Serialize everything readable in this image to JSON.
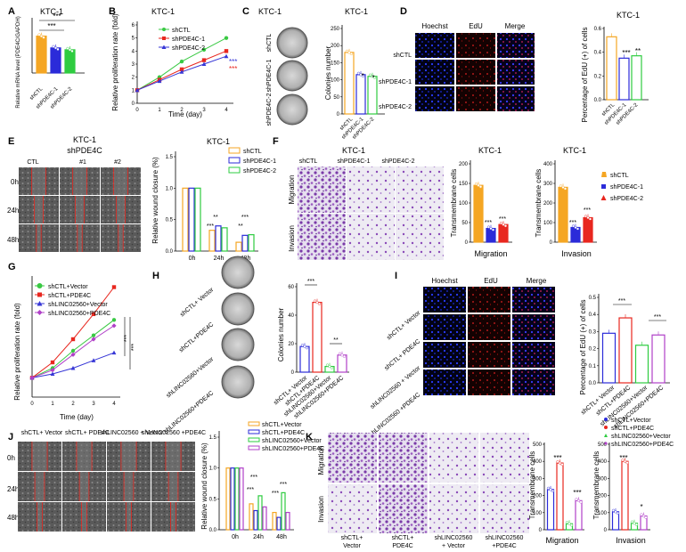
{
  "figure": {
    "panel_letters": [
      "A",
      "B",
      "C",
      "D",
      "E",
      "F",
      "G",
      "H",
      "I",
      "J",
      "K"
    ],
    "cell_line": "KTC-1",
    "sig3": "***",
    "sig2": "**",
    "sig1": "*"
  },
  "colors": {
    "orange": "#f5a623",
    "blue": "#2b2bd9",
    "green": "#2ecc40",
    "red": "#e8271f",
    "purple": "#b040c8",
    "greenline": "#39c943",
    "redline": "#e8271f",
    "blueline": "#3636d6"
  },
  "panelA": {
    "ylabel": "Relative mRNA level (PDE4C/GAPDH)",
    "categories": [
      "shCTL",
      "shPDE4C-1",
      "shPDE4C-2"
    ]
  },
  "panelB": {
    "ylabel": "Relative proliferation rate (fold)",
    "xlabel": "Time (day)",
    "legend": [
      "shCTL",
      "shPDE4C-1",
      "shPDE4C-2"
    ],
    "xticks": [
      "0",
      "1",
      "2",
      "3",
      "4"
    ],
    "yticks": [
      "0",
      "1",
      "2",
      "3",
      "4",
      "5",
      "6"
    ]
  },
  "panelC": {
    "rows": [
      "shCTL",
      "shPDE4C-1",
      "shPDE4C-2"
    ],
    "ylabel": "Colonies number",
    "yticks": [
      "0",
      "50",
      "100",
      "150",
      "200",
      "250"
    ]
  },
  "panelD": {
    "columns": [
      "Hoechst",
      "EdU",
      "Merge"
    ],
    "rows": [
      "shCTL",
      "shPDE4C-1",
      "shPDE4C-2"
    ],
    "ylabel": "Percentage of EdU (+) of cells",
    "yticks": [
      "0.0",
      "0.2",
      "0.4",
      "0.6"
    ]
  },
  "panelE": {
    "title": "shPDE4C",
    "columns": [
      "CTL",
      "#1",
      "#2"
    ],
    "rows": [
      "0h",
      "24h",
      "48h"
    ],
    "ylabel": "Relative wound closure (%)",
    "xticks": [
      "0h",
      "24h",
      "48h"
    ],
    "legend": [
      "shCTL",
      "shPDE4C-1",
      "shPDE4C-2"
    ],
    "yticks": [
      "0.0",
      "0.5",
      "1.0",
      "1.5"
    ]
  },
  "panelF": {
    "columns": [
      "shCTL",
      "shPDE4C-1",
      "shPDE4C-2"
    ],
    "rows": [
      "Migration",
      "Invasion"
    ],
    "ylabel": "Transmembrane cells",
    "migration_label": "Migration",
    "invasion_label": "Invasion",
    "legend": [
      "shCTL",
      "shPDE4C-1",
      "shPDE4C-2"
    ],
    "mig_yticks": [
      "0",
      "50",
      "100",
      "150",
      "200"
    ],
    "inv_yticks": [
      "0",
      "100",
      "200",
      "300",
      "400"
    ]
  },
  "panelG": {
    "ylabel": "Relative proliferation rate (fold)",
    "xlabel": "Time (day)",
    "legend": [
      "shCTL+Vector",
      "shCTL+PDE4C",
      "shLINC02560+Vector",
      "shLINC02560+PDE4C"
    ],
    "xticks": [
      "0",
      "1",
      "2",
      "3",
      "4"
    ]
  },
  "panelH": {
    "rows": [
      "shCTL+ Vector",
      "shCTL+PDE4C",
      "shLINC02560+Vector",
      "shLINC02560+PDE4C"
    ],
    "ylabel": "Colonies number",
    "yticks": [
      "0",
      "20",
      "40",
      "60"
    ],
    "categories": [
      "shCTL+ Vector",
      "shCTL+PDE4C",
      "shLINC02560+Vector",
      "shLINC02560+PDE4C"
    ]
  },
  "panelI": {
    "columns": [
      "Hoechst",
      "EdU",
      "Merge"
    ],
    "rows": [
      "shCTL+ Vector",
      "shCTL+ PDE4C",
      "shLINC02560 + Vector",
      "shLINC02560 +PDE4C"
    ],
    "ylabel": "Percentage of EdU (+) of cells",
    "yticks": [
      "0.0",
      "0.1",
      "0.2",
      "0.3",
      "0.4",
      "0.5"
    ],
    "categories": [
      "shCTL+ Vector",
      "shCTL+PDE4C",
      "shLINC02560+Vector",
      "shLINC02560+PDE4C"
    ]
  },
  "panelJ": {
    "columns": [
      "shCTL+ Vector",
      "shCTL+ PDE4C",
      "shLINC02560 + Vector",
      "shLINC02560 +PDE4C"
    ],
    "rows": [
      "0h",
      "24h",
      "48h"
    ],
    "ylabel": "Relative wound closure (%)",
    "xticks": [
      "0h",
      "24h",
      "48h"
    ],
    "legend": [
      "shCTL+Vector",
      "shCTL+PDE4C",
      "shLINC02560+Vector",
      "shLINC02560+PDE4C"
    ],
    "yticks": [
      "0.0",
      "0.5",
      "1.0",
      "1.5"
    ]
  },
  "panelK": {
    "columns": [
      "shCTL+ Vector",
      "shCTL+ PDE4C",
      "shLINC02560 + Vector",
      "shLINC02560 +PDE4C"
    ],
    "rows": [
      "Migration",
      "Invasion"
    ],
    "ylabel": "Transmembrane cells",
    "migration_label": "Migration",
    "invasion_label": "Invasion",
    "legend": [
      "shCTL+Vector",
      "shCTL+PDE4C",
      "shLINC02560+Vector",
      "shLINC02560+PDE4C"
    ],
    "mig_yticks": [
      "0",
      "100",
      "200",
      "300",
      "400",
      "500"
    ],
    "inv_yticks": [
      "0",
      "100",
      "200",
      "300",
      "400",
      "500"
    ]
  },
  "chart_data": [
    {
      "type": "bar",
      "id": "A",
      "categories": [
        "shCTL",
        "shPDE4C-1",
        "shPDE4C-2"
      ],
      "values": [
        1.0,
        0.68,
        0.63
      ],
      "ylim": [
        0,
        1.4
      ]
    },
    {
      "type": "line",
      "id": "B",
      "x": [
        0,
        1,
        2,
        3,
        4
      ],
      "series": [
        {
          "name": "shCTL",
          "values": [
            1.0,
            2.0,
            3.2,
            4.1,
            5.0
          ]
        },
        {
          "name": "shPDE4C-1",
          "values": [
            1.0,
            1.8,
            2.6,
            3.3,
            4.0
          ]
        },
        {
          "name": "shPDE4C-2",
          "values": [
            1.0,
            1.7,
            2.4,
            3.0,
            3.6
          ]
        }
      ],
      "ylim": [
        0,
        6
      ]
    },
    {
      "type": "bar",
      "id": "C",
      "categories": [
        "shCTL",
        "shPDE4C-1",
        "shPDE4C-2"
      ],
      "values": [
        180,
        115,
        110
      ],
      "ylim": [
        0,
        250
      ]
    },
    {
      "type": "bar",
      "id": "D",
      "categories": [
        "shCTL",
        "shPDE4C-1",
        "shPDE4C-2"
      ],
      "values": [
        0.53,
        0.35,
        0.37
      ],
      "ylim": [
        0,
        0.6
      ]
    },
    {
      "type": "bar",
      "id": "E",
      "categories": [
        "0h",
        "24h",
        "48h"
      ],
      "series": [
        {
          "name": "shCTL",
          "values": [
            1.0,
            0.33,
            0.14
          ]
        },
        {
          "name": "shPDE4C-1",
          "values": [
            1.0,
            0.4,
            0.25
          ]
        },
        {
          "name": "shPDE4C-2",
          "values": [
            1.0,
            0.37,
            0.26
          ]
        }
      ],
      "ylim": [
        0,
        1.5
      ]
    },
    {
      "type": "bar",
      "id": "F-migration",
      "categories": [
        "shCTL",
        "shPDE4C-1",
        "shPDE4C-2"
      ],
      "values": [
        145,
        35,
        45
      ],
      "ylim": [
        0,
        200
      ]
    },
    {
      "type": "bar",
      "id": "F-invasion",
      "categories": [
        "shCTL",
        "shPDE4C-1",
        "shPDE4C-2"
      ],
      "values": [
        280,
        75,
        125
      ],
      "ylim": [
        0,
        400
      ]
    },
    {
      "type": "line",
      "id": "G",
      "x": [
        0,
        1,
        2,
        3,
        4
      ],
      "series": [
        {
          "name": "shCTL+Vector",
          "values": [
            1.0,
            1.5,
            2.4,
            3.2,
            4.0
          ]
        },
        {
          "name": "shCTL+PDE4C",
          "values": [
            1.0,
            1.8,
            3.0,
            4.3,
            5.7
          ]
        },
        {
          "name": "shLINC02560+Vector",
          "values": [
            1.0,
            1.2,
            1.5,
            1.9,
            2.3
          ]
        },
        {
          "name": "shLINC02560+PDE4C",
          "values": [
            1.0,
            1.4,
            2.2,
            3.0,
            3.7
          ]
        }
      ],
      "ylim": [
        0,
        6
      ]
    },
    {
      "type": "bar",
      "id": "H",
      "categories": [
        "shCTL+ Vector",
        "shCTL+PDE4C",
        "shLINC02560+Vector",
        "shLINC02560+PDE4C"
      ],
      "values": [
        18,
        49,
        4,
        12
      ],
      "ylim": [
        0,
        60
      ]
    },
    {
      "type": "bar",
      "id": "I",
      "categories": [
        "shCTL+ Vector",
        "shCTL+PDE4C",
        "shLINC02560+Vector",
        "shLINC02560+PDE4C"
      ],
      "values": [
        0.29,
        0.38,
        0.22,
        0.28
      ],
      "ylim": [
        0,
        0.5
      ]
    },
    {
      "type": "bar",
      "id": "J",
      "categories": [
        "0h",
        "24h",
        "48h"
      ],
      "series": [
        {
          "name": "shCTL+Vector",
          "values": [
            1.0,
            0.42,
            0.28
          ]
        },
        {
          "name": "shCTL+PDE4C",
          "values": [
            1.0,
            0.31,
            0.2
          ]
        },
        {
          "name": "shLINC02560+Vector",
          "values": [
            1.0,
            0.55,
            0.6
          ]
        },
        {
          "name": "shLINC02560+PDE4C",
          "values": [
            1.0,
            0.37,
            0.28
          ]
        }
      ],
      "ylim": [
        0,
        1.5
      ]
    },
    {
      "type": "bar",
      "id": "K-migration",
      "categories": [
        "shCTL+Vector",
        "shCTL+PDE4C",
        "shLINC02560+Vector",
        "shLINC02560+PDE4C"
      ],
      "values": [
        235,
        390,
        35,
        170
      ],
      "ylim": [
        0,
        500
      ]
    },
    {
      "type": "bar",
      "id": "K-invasion",
      "categories": [
        "shCTL+Vector",
        "shCTL+PDE4C",
        "shLINC02560+Vector",
        "shLINC02560+PDE4C"
      ],
      "values": [
        105,
        400,
        38,
        80
      ],
      "ylim": [
        0,
        500
      ]
    }
  ]
}
